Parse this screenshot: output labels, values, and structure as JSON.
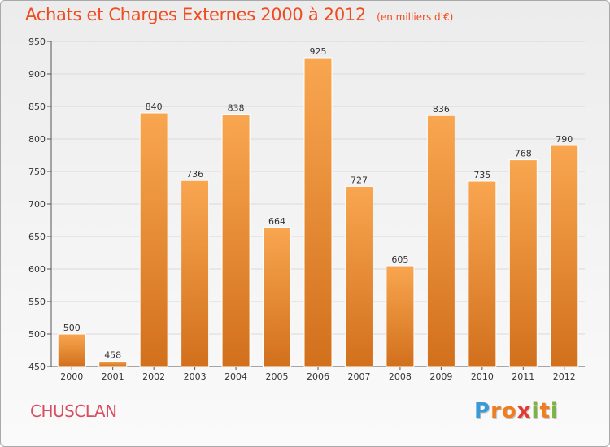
{
  "chart_data": {
    "type": "bar",
    "title": "Achats et Charges Externes 2000 à 2012",
    "subtitle": "(en milliers d'€)",
    "categories": [
      "2000",
      "2001",
      "2002",
      "2003",
      "2004",
      "2005",
      "2006",
      "2007",
      "2008",
      "2009",
      "2010",
      "2011",
      "2012"
    ],
    "values": [
      500,
      458,
      840,
      736,
      838,
      664,
      925,
      727,
      605,
      836,
      735,
      768,
      790
    ],
    "ylim": [
      450,
      950
    ],
    "yticks": [
      450,
      500,
      550,
      600,
      650,
      700,
      750,
      800,
      850,
      900,
      950
    ],
    "xlabel": "",
    "ylabel": "",
    "grid": true,
    "bar_color_top": "#f9a650",
    "bar_color_bottom": "#d2701c"
  },
  "footer": {
    "commune": "CHUSCLAN",
    "logo_letters": [
      "P",
      "r",
      "o",
      "x",
      "i",
      "t",
      "i"
    ],
    "logo_colors": [
      "#3a9ad9",
      "#f07d1e",
      "#f07d1e",
      "#e53935",
      "#7cb342",
      "#f07d1e",
      "#7cb342"
    ]
  },
  "colors": {
    "title": "#f24a1f",
    "commune": "#d94d60"
  }
}
